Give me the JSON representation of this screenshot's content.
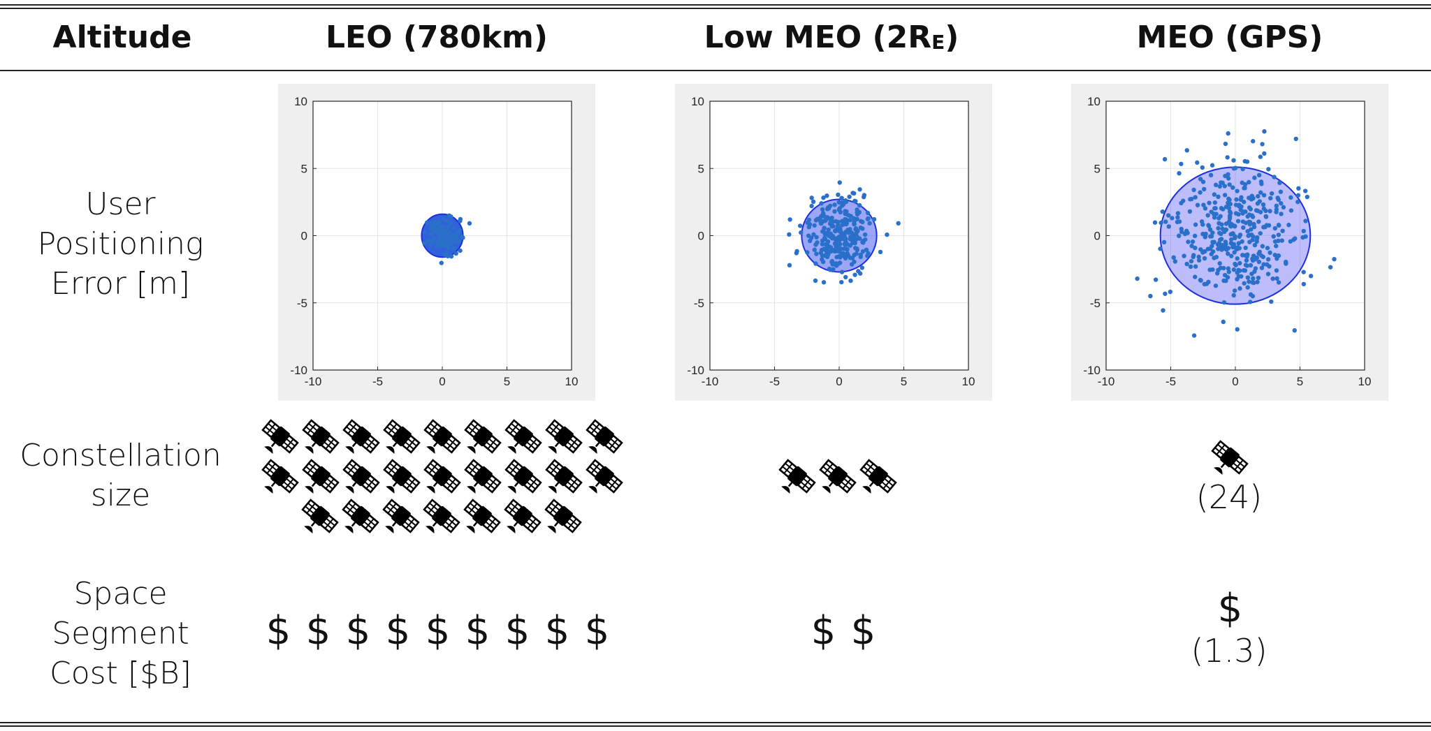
{
  "header": {
    "col0": "Altitude",
    "col1": "LEO (780km)",
    "col2_prefix": "Low  MEO (2R",
    "col2_sub": "E",
    "col2_suffix": ")",
    "col3": "MEO (GPS)"
  },
  "rows": {
    "positioning": [
      "User",
      "Positioning",
      "Error [m]"
    ],
    "constellation": [
      "Constellation",
      "size"
    ],
    "cost": [
      "Space",
      "Segment",
      "Cost [$B]"
    ]
  },
  "constellation": {
    "leo_count_icons": 25,
    "lowmeo_count_icons": 3,
    "meo_count_icons": 1,
    "meo_note": "(24)"
  },
  "cost": {
    "leo_symbols": 9,
    "lowmeo_symbols": 2,
    "meo_symbols": 1,
    "symbol": "$",
    "meo_note": "(1.3)"
  },
  "chart_data": [
    {
      "type": "scatter",
      "panel": "LEO (780km)",
      "xlim": [
        -10,
        10
      ],
      "ylim": [
        -10,
        10
      ],
      "xticks": [
        -10,
        -5,
        0,
        5,
        10
      ],
      "yticks": [
        -10,
        -5,
        0,
        5,
        10
      ],
      "grid": true,
      "points_color": "#2a6fc9",
      "ellipse": {
        "cx": 0,
        "cy": 0,
        "rx": 1.6,
        "ry": 1.6,
        "fill": "#1a4fd6",
        "opacity": 0.9
      },
      "scatter_radius": 1.25,
      "n_points": 150
    },
    {
      "type": "scatter",
      "panel": "Low MEO (2RE)",
      "xlim": [
        -10,
        10
      ],
      "ylim": [
        -10,
        10
      ],
      "xticks": [
        -10,
        -5,
        0,
        5,
        10
      ],
      "yticks": [
        -10,
        -5,
        0,
        5,
        10
      ],
      "grid": true,
      "points_color": "#2a6fc9",
      "ellipse": {
        "cx": 0,
        "cy": 0,
        "rx": 2.9,
        "ry": 2.7,
        "fill": "#4a5cf0",
        "opacity": 0.55
      },
      "scatter_radius": 2.5,
      "n_points": 300
    },
    {
      "type": "scatter",
      "panel": "MEO (GPS)",
      "xlim": [
        -10,
        10
      ],
      "ylim": [
        -10,
        10
      ],
      "xticks": [
        -10,
        -5,
        0,
        5,
        10
      ],
      "yticks": [
        -10,
        -5,
        0,
        5,
        10
      ],
      "grid": true,
      "points_color": "#2a6fc9",
      "ellipse": {
        "cx": 0,
        "cy": 0,
        "rx": 5.8,
        "ry": 5.1,
        "fill": "#6a6df5",
        "opacity": 0.45
      },
      "scatter_radius": 4.6,
      "n_points": 420
    }
  ]
}
